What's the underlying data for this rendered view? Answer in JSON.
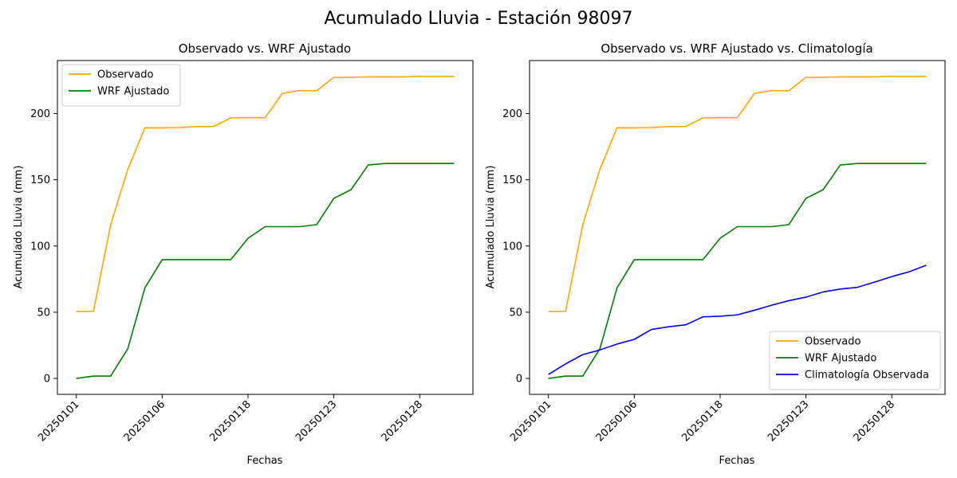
{
  "figure_title": "Acumulado Lluvia - Estación 98097",
  "colors": {
    "observado": "#ffa500",
    "wrf": "#008000",
    "clima": "#0000ff"
  },
  "chart_data": [
    {
      "type": "line",
      "title": "Observado vs. WRF Ajustado",
      "xlabel": "Fechas",
      "ylabel": "Acumulado Lluvia (mm)",
      "x_ticks": [
        "20250101",
        "20250106",
        "20250118",
        "20250123",
        "20250128"
      ],
      "x_tick_positions": [
        0,
        5,
        10,
        15,
        20
      ],
      "ylim": [
        -12,
        240
      ],
      "y_ticks": [
        0,
        50,
        100,
        150,
        200
      ],
      "legend_position": "upper-left",
      "series": [
        {
          "name": "Observado",
          "color": "#ffa500",
          "values": [
            50.5,
            50.7,
            116,
            158,
            189.2,
            189.2,
            189.4,
            190.1,
            190.2,
            196.7,
            196.9,
            196.9,
            215.2,
            217.3,
            217.3,
            227.3,
            227.3,
            227.7,
            227.7,
            227.7,
            228,
            228,
            228
          ]
        },
        {
          "name": "WRF Ajustado",
          "color": "#008000",
          "values": [
            0,
            1.8,
            1.8,
            22.5,
            68.5,
            89.7,
            89.7,
            89.7,
            89.7,
            89.7,
            105.8,
            114.6,
            114.6,
            114.6,
            116.1,
            136,
            142.5,
            161.2,
            162.3,
            162.3,
            162.3,
            162.3,
            162.3
          ]
        }
      ]
    },
    {
      "type": "line",
      "title": "Observado vs. WRF Ajustado vs. Climatología",
      "xlabel": "Fechas",
      "ylabel": "Acumulado Lluvia (mm)",
      "x_ticks": [
        "20250101",
        "20250106",
        "20250118",
        "20250123",
        "20250128"
      ],
      "x_tick_positions": [
        0,
        5,
        10,
        15,
        20
      ],
      "ylim": [
        -12,
        240
      ],
      "y_ticks": [
        0,
        50,
        100,
        150,
        200
      ],
      "legend_position": "lower-right",
      "series": [
        {
          "name": "Observado",
          "color": "#ffa500",
          "values": [
            50.5,
            50.7,
            116,
            158,
            189.2,
            189.2,
            189.4,
            190.1,
            190.2,
            196.7,
            196.9,
            196.9,
            215.2,
            217.3,
            217.3,
            227.3,
            227.3,
            227.7,
            227.7,
            227.7,
            228,
            228,
            228
          ]
        },
        {
          "name": "WRF Ajustado",
          "color": "#008000",
          "values": [
            0,
            1.8,
            1.8,
            22.5,
            68.5,
            89.7,
            89.7,
            89.7,
            89.7,
            89.7,
            105.8,
            114.6,
            114.6,
            114.6,
            116.1,
            136,
            142.5,
            161.2,
            162.3,
            162.3,
            162.3,
            162.3,
            162.3
          ]
        },
        {
          "name": "Climatología Observada",
          "color": "#0000ff",
          "values": [
            3,
            11,
            18,
            21.5,
            26,
            29.5,
            37,
            39,
            40.5,
            46.5,
            47,
            48,
            51.5,
            55.3,
            58.7,
            61.4,
            65.3,
            67.5,
            68.8,
            72.7,
            76.9,
            80.5,
            85.4
          ]
        }
      ]
    }
  ]
}
